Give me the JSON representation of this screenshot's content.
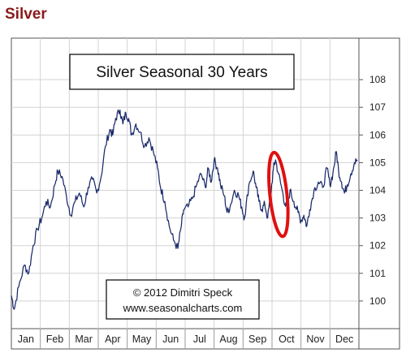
{
  "page_title": "Silver",
  "chart_data": {
    "type": "line",
    "title": "Silver Seasonal 30 Years",
    "copyright_line1": "© 2012  Dimitri Speck",
    "copyright_line2": "www.seasonalcharts.com",
    "xlabel": "",
    "ylabel": "",
    "ylim": [
      99,
      109.5
    ],
    "y_ticks": [
      100,
      101,
      102,
      103,
      104,
      105,
      106,
      107,
      108
    ],
    "months": [
      "Jan",
      "Feb",
      "Mar",
      "Apr",
      "May",
      "Jun",
      "Jul",
      "Aug",
      "Sep",
      "Oct",
      "Nov",
      "Dec"
    ],
    "grid": true,
    "line_color": "#1a2a6b",
    "highlight_color": "#e01010",
    "highlight_note": "red ellipse around late September / early October",
    "series": [
      {
        "name": "",
        "points": [
          [
            0.0,
            100.2
          ],
          [
            0.1,
            99.7
          ],
          [
            0.25,
            100.5
          ],
          [
            0.45,
            101.3
          ],
          [
            0.6,
            101.0
          ],
          [
            0.75,
            102.0
          ],
          [
            0.9,
            102.6
          ],
          [
            1.05,
            103.0
          ],
          [
            1.2,
            103.6
          ],
          [
            1.35,
            103.4
          ],
          [
            1.5,
            104.2
          ],
          [
            1.6,
            104.7
          ],
          [
            1.75,
            104.5
          ],
          [
            1.9,
            103.8
          ],
          [
            2.05,
            103.1
          ],
          [
            2.2,
            103.6
          ],
          [
            2.35,
            103.9
          ],
          [
            2.5,
            103.4
          ],
          [
            2.65,
            104.1
          ],
          [
            2.8,
            104.4
          ],
          [
            2.95,
            103.9
          ],
          [
            3.1,
            104.5
          ],
          [
            3.25,
            105.6
          ],
          [
            3.4,
            106.2
          ],
          [
            3.5,
            106.0
          ],
          [
            3.6,
            106.6
          ],
          [
            3.75,
            106.9
          ],
          [
            3.85,
            106.4
          ],
          [
            3.95,
            106.8
          ],
          [
            4.05,
            106.6
          ],
          [
            4.15,
            106.0
          ],
          [
            4.3,
            106.4
          ],
          [
            4.45,
            106.1
          ],
          [
            4.6,
            105.6
          ],
          [
            4.75,
            105.9
          ],
          [
            4.9,
            105.4
          ],
          [
            5.05,
            104.8
          ],
          [
            5.15,
            104.1
          ],
          [
            5.3,
            103.6
          ],
          [
            5.45,
            102.7
          ],
          [
            5.6,
            102.2
          ],
          [
            5.75,
            101.9
          ],
          [
            5.85,
            102.6
          ],
          [
            5.95,
            103.3
          ],
          [
            6.1,
            103.4
          ],
          [
            6.25,
            103.7
          ],
          [
            6.4,
            104.2
          ],
          [
            6.55,
            104.6
          ],
          [
            6.7,
            104.1
          ],
          [
            6.8,
            104.8
          ],
          [
            6.9,
            104.3
          ],
          [
            7.0,
            105.1
          ],
          [
            7.12,
            104.8
          ],
          [
            7.22,
            104.2
          ],
          [
            7.35,
            103.8
          ],
          [
            7.45,
            103.2
          ],
          [
            7.55,
            103.4
          ],
          [
            7.7,
            104.0
          ],
          [
            7.85,
            103.8
          ],
          [
            7.95,
            103.4
          ],
          [
            8.05,
            103.0
          ],
          [
            8.2,
            104.2
          ],
          [
            8.35,
            104.7
          ],
          [
            8.45,
            104.1
          ],
          [
            8.55,
            103.6
          ],
          [
            8.65,
            103.3
          ],
          [
            8.75,
            103.5
          ],
          [
            8.85,
            103.0
          ],
          [
            8.95,
            103.8
          ],
          [
            9.05,
            104.8
          ],
          [
            9.12,
            105.1
          ],
          [
            9.22,
            104.6
          ],
          [
            9.35,
            104.0
          ],
          [
            9.45,
            103.5
          ],
          [
            9.52,
            103.3
          ],
          [
            9.62,
            104.0
          ],
          [
            9.75,
            103.6
          ],
          [
            9.9,
            103.2
          ],
          [
            10.0,
            102.9
          ],
          [
            10.1,
            103.1
          ],
          [
            10.2,
            102.7
          ],
          [
            10.3,
            103.3
          ],
          [
            10.45,
            104.0
          ],
          [
            10.6,
            104.3
          ],
          [
            10.75,
            104.1
          ],
          [
            10.9,
            104.8
          ],
          [
            11.0,
            104.2
          ],
          [
            11.1,
            104.6
          ],
          [
            11.22,
            105.4
          ],
          [
            11.3,
            104.7
          ],
          [
            11.4,
            104.3
          ],
          [
            11.5,
            103.9
          ],
          [
            11.6,
            104.2
          ],
          [
            11.72,
            104.6
          ],
          [
            11.85,
            105.0
          ],
          [
            11.95,
            105.1
          ]
        ]
      }
    ]
  }
}
